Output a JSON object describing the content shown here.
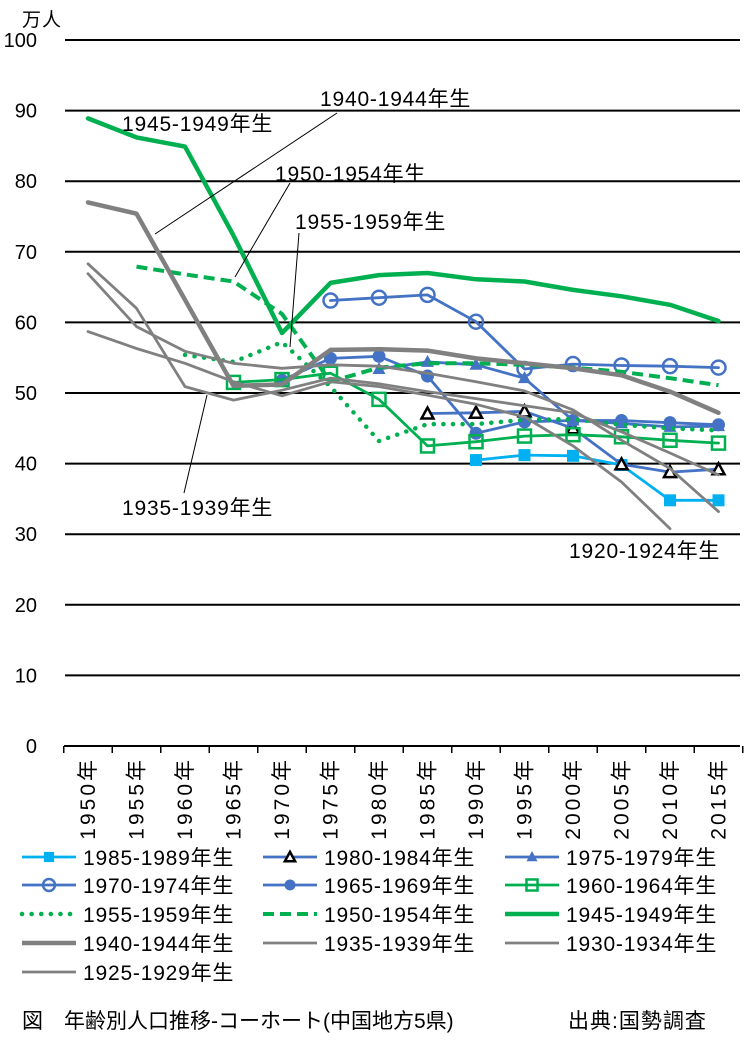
{
  "chart_data": {
    "type": "line",
    "title": "図　年齢別人口推移-コーホート(中国地方5県)",
    "source": "出典:国勢調査",
    "xlabel": "",
    "ylabel": "万人",
    "ylim": [
      0,
      100
    ],
    "yticks": [
      0,
      10,
      20,
      30,
      40,
      50,
      60,
      70,
      80,
      90,
      100
    ],
    "grid": true,
    "legend": "bottom",
    "categories": [
      "1950年",
      "1955年",
      "1960年",
      "1965年",
      "1970年",
      "1975年",
      "1980年",
      "1985年",
      "1990年",
      "1995年",
      "2000年",
      "2005年",
      "2010年",
      "2015年"
    ],
    "series": [
      {
        "name": "1985-1989年生",
        "color": "#00B0F0",
        "line_style": "solid",
        "marker": "square-filled",
        "values": [
          null,
          null,
          null,
          null,
          null,
          null,
          null,
          null,
          40.5,
          41.2,
          41.1,
          39.8,
          34.8,
          34.8
        ]
      },
      {
        "name": "1980-1984年生",
        "color": "#4472C4",
        "marker_color": "#000000",
        "line_style": "solid",
        "marker": "triangle-open",
        "values": [
          null,
          null,
          null,
          null,
          null,
          null,
          null,
          47.1,
          47.2,
          47.4,
          45.0,
          39.9,
          38.8,
          39.2
        ]
      },
      {
        "name": "1975-1979年生",
        "color": "#4472C4",
        "line_style": "solid",
        "marker": "triangle-filled",
        "values": [
          null,
          null,
          null,
          null,
          null,
          null,
          53.4,
          54.4,
          54.0,
          52.1,
          46.1,
          45.7,
          45.2,
          45.3
        ]
      },
      {
        "name": "1970-1974年生",
        "color": "#4472C4",
        "line_style": "solid",
        "marker": "circle-open",
        "values": [
          null,
          null,
          null,
          null,
          null,
          63.1,
          63.5,
          63.9,
          60.1,
          53.4,
          54.1,
          53.9,
          53.8,
          53.6
        ]
      },
      {
        "name": "1965-1969年生",
        "color": "#4472C4",
        "line_style": "solid",
        "marker": "circle-filled",
        "values": [
          null,
          null,
          null,
          null,
          51.8,
          54.9,
          55.2,
          52.4,
          44.3,
          45.9,
          46.1,
          46.1,
          45.8,
          45.5
        ]
      },
      {
        "name": "1960-1964年生",
        "color": "#00B050",
        "line_style": "solid",
        "marker": "square-open",
        "values": [
          null,
          null,
          null,
          51.5,
          51.9,
          52.8,
          49.1,
          42.5,
          43.1,
          43.9,
          44.1,
          43.8,
          43.3,
          42.9
        ]
      },
      {
        "name": "1955-1959年生",
        "color": "#00B050",
        "line_style": "dotted",
        "marker": "none",
        "values": [
          null,
          null,
          55.4,
          54.4,
          57.2,
          50.9,
          43.2,
          45.6,
          45.6,
          46.2,
          46.3,
          45.5,
          45.0,
          44.7
        ]
      },
      {
        "name": "1950-1954年生",
        "color": "#00B050",
        "line_style": "dashed",
        "marker": "none",
        "values": [
          null,
          67.9,
          66.8,
          65.8,
          61.2,
          51.6,
          53.6,
          54.2,
          54.2,
          54.0,
          53.6,
          53.0,
          52.1,
          51.1
        ]
      },
      {
        "name": "1945-1949年生",
        "color": "#00B050",
        "line_style": "solid-bold",
        "marker": "none",
        "values": [
          88.9,
          86.2,
          84.9,
          72.3,
          58.5,
          65.6,
          66.7,
          67.0,
          66.1,
          65.8,
          64.6,
          63.7,
          62.5,
          60.2
        ]
      },
      {
        "name": "1940-1944年生",
        "color": "#808080",
        "line_style": "solid-bold",
        "marker": "none",
        "values": [
          77.0,
          75.4,
          63.2,
          51.0,
          51.2,
          56.1,
          56.2,
          56.0,
          54.9,
          54.2,
          53.5,
          52.5,
          50.2,
          47.2
        ]
      },
      {
        "name": "1935-1939年生",
        "color": "#808080",
        "line_style": "solid",
        "marker": "none",
        "values": [
          68.3,
          62.0,
          50.9,
          49.0,
          50.4,
          52.1,
          51.3,
          50.2,
          49.2,
          48.2,
          47.2,
          44.5,
          41.5,
          38.4
        ]
      },
      {
        "name": "1930-1934年生",
        "color": "#808080",
        "line_style": "solid",
        "marker": "none",
        "values": [
          66.9,
          59.4,
          55.9,
          54.2,
          53.5,
          54.0,
          53.8,
          52.8,
          51.6,
          50.3,
          47.6,
          43.3,
          39.3,
          33.2
        ]
      },
      {
        "name": "1925-1929年生",
        "color": "#808080",
        "line_style": "solid",
        "marker": "none",
        "values": [
          58.7,
          56.3,
          54.2,
          51.6,
          49.6,
          51.6,
          50.9,
          49.7,
          48.4,
          46.6,
          42.5,
          37.4,
          30.8,
          null
        ]
      }
    ],
    "annotations": [
      {
        "text": "1940-1944年生"
      },
      {
        "text": "1945-1949年生"
      },
      {
        "text": "1950-1954年生"
      },
      {
        "text": "1955-1959年生"
      },
      {
        "text": "1935-1939年生"
      },
      {
        "text": "1920-1924年生"
      }
    ]
  }
}
